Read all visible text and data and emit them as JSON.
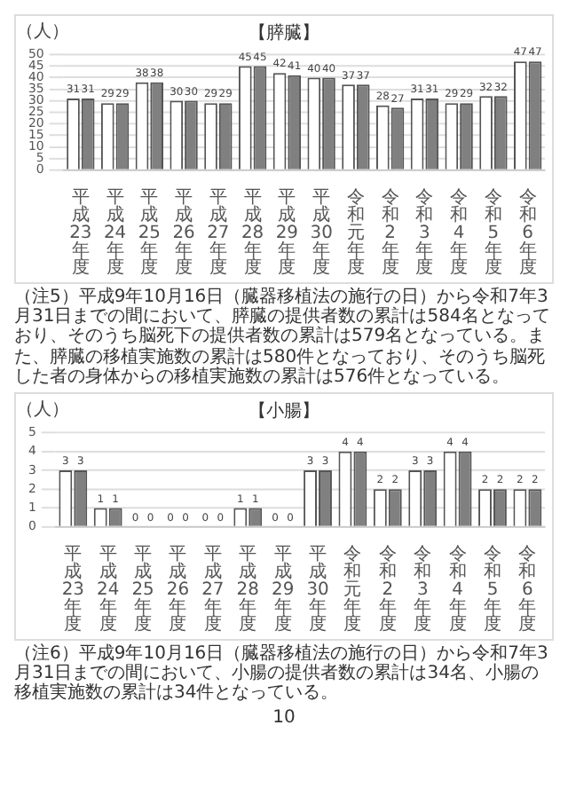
{
  "chart_data": [
    {
      "type": "bar",
      "title": "【膵臓】",
      "ylabel": "（人）",
      "categories": [
        "平成23年度",
        "平成24年度",
        "平成25年度",
        "平成26年度",
        "平成27年度",
        "平成28年度",
        "平成29年度",
        "平成30年度",
        "令和元年度",
        "令和2年度",
        "令和3年度",
        "令和4年度",
        "令和5年度",
        "令和6年度"
      ],
      "series": [
        {
          "color": "#ffffff",
          "values": [
            31,
            29,
            38,
            30,
            29,
            45,
            42,
            40,
            37,
            28,
            31,
            29,
            32,
            47
          ]
        },
        {
          "color": "#808080",
          "values": [
            31,
            29,
            38,
            30,
            29,
            45,
            41,
            40,
            37,
            27,
            31,
            29,
            32,
            47
          ]
        }
      ],
      "ylim": [
        0,
        50
      ],
      "yticks": [
        0,
        5,
        10,
        15,
        20,
        25,
        30,
        35,
        40,
        45,
        50
      ],
      "grid": "y",
      "data_labels": true,
      "annotations": [
        "（注5）平成9年10月16日（臓器移植法の施行の日）から令和7年3月31日までの間において、膵臓の提供者数の累計は584名となっており、そのうち脳死下の提供者数の累計は579名となっている。また、膵臓の移植実施数の累計は580件となっており、そのうち脳死した者の身体からの移植実施数の累計は576件となっている。"
      ]
    },
    {
      "type": "bar",
      "title": "【小腸】",
      "ylabel": "（人）",
      "categories": [
        "平成23年度",
        "平成24年度",
        "平成25年度",
        "平成26年度",
        "平成27年度",
        "平成28年度",
        "平成29年度",
        "平成30年度",
        "令和元年度",
        "令和2年度",
        "令和3年度",
        "令和4年度",
        "令和5年度",
        "令和6年度"
      ],
      "series": [
        {
          "color": "#ffffff",
          "values": [
            3,
            1,
            0,
            0,
            0,
            1,
            0,
            3,
            4,
            2,
            3,
            4,
            2,
            2
          ]
        },
        {
          "color": "#808080",
          "values": [
            3,
            1,
            0,
            0,
            0,
            1,
            0,
            3,
            4,
            2,
            3,
            4,
            2,
            2
          ]
        }
      ],
      "ylim": [
        0,
        5
      ],
      "yticks": [
        0,
        1,
        2,
        3,
        4,
        5
      ],
      "grid": "y",
      "data_labels": true,
      "annotations": [
        "（注6）平成9年10月16日（臓器移植法の施行の日）から令和7年3月31日までの間において、小腸の提供者数の累計は34名、小腸の移植実施数の累計は34件となっている。",
        "10"
      ]
    }
  ]
}
